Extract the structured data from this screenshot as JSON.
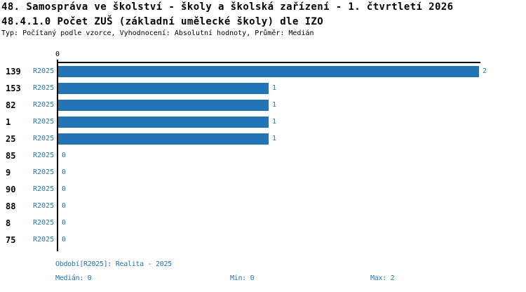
{
  "header": {
    "title": "48. Samospráva ve školství - školy a školská zařízení - 1. čtvrtletí 2026",
    "subtitle": "48.4.1.0 Počet ZUŠ (základní umělecké školy) dle IZO",
    "meta": "Typ: Počítaný podle vzorce, Vyhodnocení: Absolutní hodnoty, Průměr: Medián"
  },
  "axis": {
    "top_tick_label": "0"
  },
  "chart_data": {
    "type": "bar",
    "orientation": "horizontal",
    "title": "48.4.1.0 Počet ZUŠ (základní umělecké školy) dle IZO",
    "categories": [
      "139",
      "153",
      "82",
      "1",
      "25",
      "85",
      "9",
      "90",
      "88",
      "8",
      "75"
    ],
    "series": [
      {
        "name": "R2025",
        "values": [
          2,
          1,
          1,
          1,
          1,
          0,
          0,
          0,
          0,
          0,
          0
        ]
      }
    ],
    "xlim": [
      0,
      2
    ],
    "xticks": [
      "0"
    ],
    "grid": false,
    "legend_position": "none",
    "value_labels": true,
    "stats": {
      "median": 0,
      "min": 0,
      "max": 2
    }
  },
  "footer": {
    "period_line": "Období[R2025]: Realita - 2025",
    "median": "Medián: 0",
    "min": "Min: 0",
    "max": "Max: 2"
  },
  "colors": {
    "bar_blue": "#2274B4",
    "text_blue": "#2274B4",
    "axis_black": "#000000",
    "background": "#FFFFFF"
  }
}
